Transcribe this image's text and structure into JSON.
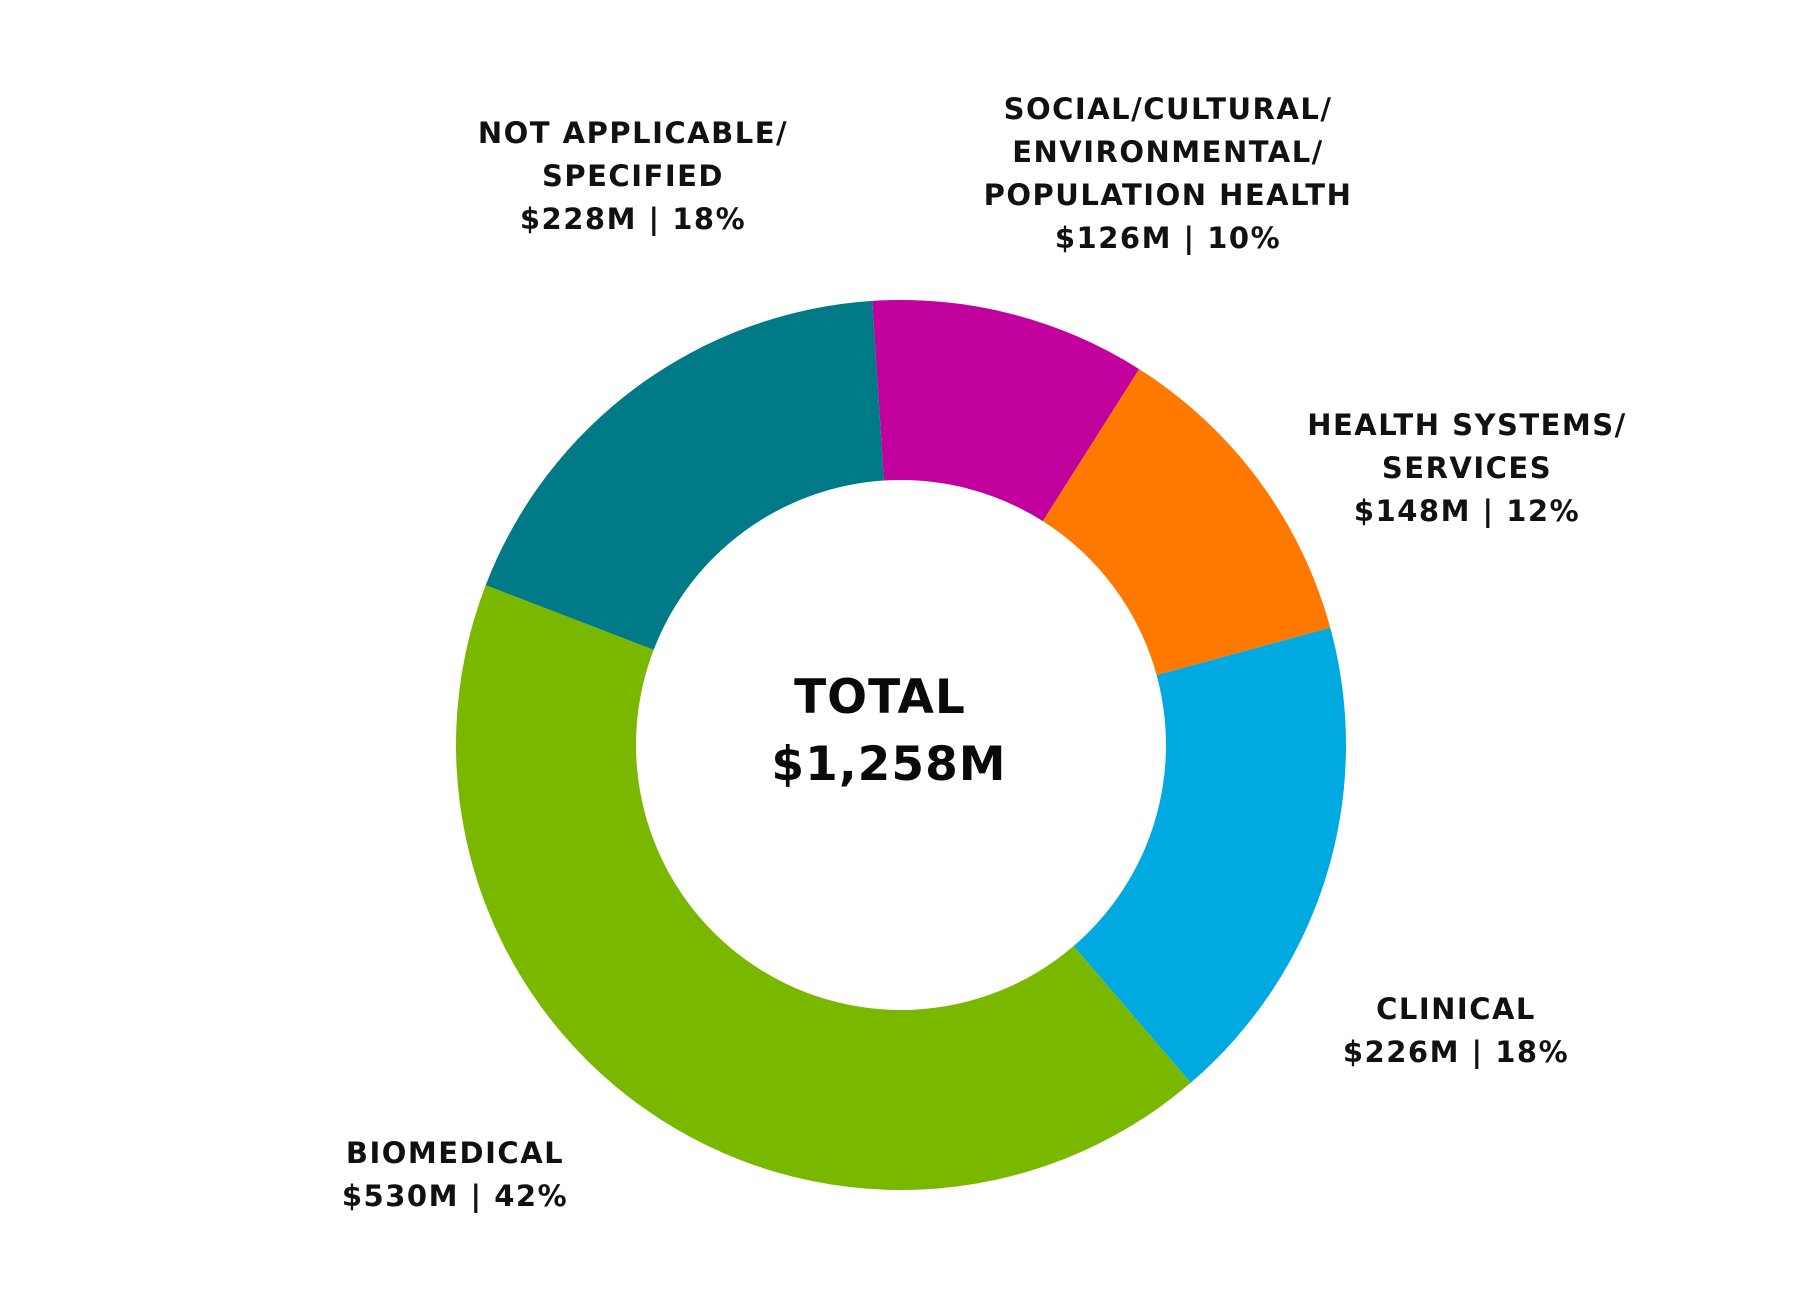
{
  "chart_data": {
    "type": "donut",
    "title": "",
    "center_label": {
      "line1": "TOTAL",
      "line2": "$1,258M"
    },
    "total": 1258,
    "unit": "$M",
    "start_angle_deg": -3.7,
    "direction": "clockwise",
    "segments": [
      {
        "name": "SOCIAL/CULTURAL/ENVIRONMENTAL/POPULATION HEALTH",
        "value": 126,
        "percent": 10,
        "color": "#c1009e",
        "label_lines": [
          "SOCIAL/CULTURAL/",
          "ENVIRONMENTAL/",
          "POPULATION HEALTH",
          "$126M | 10%"
        ]
      },
      {
        "name": "HEALTH SYSTEMS/SERVICES",
        "value": 148,
        "percent": 12,
        "color": "#ff7900",
        "label_lines": [
          "HEALTH SYSTEMS/",
          "SERVICES",
          "$148M | 12%"
        ]
      },
      {
        "name": "CLINICAL",
        "value": 226,
        "percent": 18,
        "color": "#00a9e0",
        "label_lines": [
          "CLINICAL",
          "$226M | 18%"
        ]
      },
      {
        "name": "BIOMEDICAL",
        "value": 530,
        "percent": 42,
        "color": "#7ab800",
        "label_lines": [
          "BIOMEDICAL",
          "$530M | 42%"
        ]
      },
      {
        "name": "NOT APPLICABLE/SPECIFIED",
        "value": 228,
        "percent": 18,
        "color": "#007a87",
        "label_lines": [
          "NOT APPLICABLE/",
          "SPECIFIED",
          "$228M | 18%"
        ]
      }
    ]
  }
}
